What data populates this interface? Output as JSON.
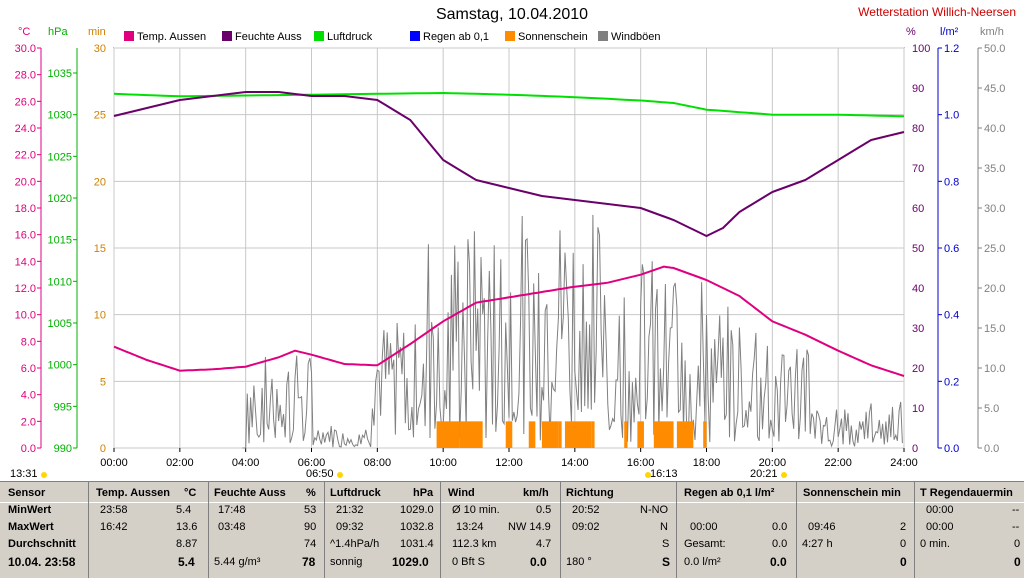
{
  "title": "Samstag, 10.04.2010",
  "station": "Wetterstation Willich-Neersen",
  "units": {
    "temp": "°C",
    "press": "hPa",
    "min": "min",
    "pct": "%",
    "rain": "l/m²",
    "wind": "km/h"
  },
  "legend": [
    {
      "label": "Temp. Aussen",
      "color": "#e0007f"
    },
    {
      "label": "Feuchte Auss",
      "color": "#6a006a"
    },
    {
      "label": "Luftdruck",
      "color": "#00e000"
    },
    {
      "label": "Regen ab 0,1",
      "color": "#0000ff"
    },
    {
      "label": "Sonnenschein",
      "color": "#ff8c00"
    },
    {
      "label": "Windböen",
      "color": "#808080"
    }
  ],
  "chart_data": {
    "type": "line",
    "title": "Samstag, 10.04.2010",
    "x_unit": "hours",
    "x_ticks": [
      "00:00",
      "02:00",
      "04:00",
      "06:00",
      "08:00",
      "10:00",
      "12:00",
      "14:00",
      "16:00",
      "18:00",
      "20:00",
      "22:00",
      "24:00"
    ],
    "axes": {
      "temp": {
        "range": [
          0,
          30
        ],
        "ticks": [
          "0.0",
          "2.0",
          "4.0",
          "6.0",
          "8.0",
          "10.0",
          "12.0",
          "14.0",
          "16.0",
          "18.0",
          "20.0",
          "22.0",
          "24.0",
          "26.0",
          "28.0",
          "30.0"
        ]
      },
      "press": {
        "range": [
          990,
          1038
        ],
        "ticks": [
          "990",
          "995",
          "1000",
          "1005",
          "1010",
          "1015",
          "1020",
          "1025",
          "1030",
          "1035"
        ]
      },
      "minutes": {
        "range": [
          0,
          30
        ],
        "ticks": [
          "0",
          "5",
          "10",
          "15",
          "20",
          "25",
          "30"
        ]
      },
      "humidity": {
        "range": [
          0,
          100
        ],
        "ticks": [
          "0",
          "10",
          "20",
          "30",
          "40",
          "50",
          "60",
          "70",
          "80",
          "90",
          "100"
        ]
      },
      "rain": {
        "range": [
          0,
          1.2
        ],
        "ticks": [
          "0.0",
          "0.2",
          "0.4",
          "0.6",
          "0.8",
          "1.0",
          "1.2"
        ]
      },
      "wind": {
        "range": [
          0,
          50
        ],
        "ticks": [
          "0.0",
          "5.0",
          "10.0",
          "15.0",
          "20.0",
          "25.0",
          "30.0",
          "35.0",
          "40.0",
          "45.0",
          "50.0"
        ]
      }
    },
    "series": [
      {
        "name": "Temp. Aussen",
        "axis": "temp",
        "x": [
          0,
          1,
          2,
          3,
          4,
          5,
          5.5,
          6,
          7,
          8,
          9,
          10,
          11,
          12,
          13,
          14,
          15,
          16,
          16.7,
          17,
          18,
          19,
          20,
          21,
          22,
          23,
          24
        ],
        "y": [
          7.6,
          6.6,
          5.8,
          5.9,
          6.1,
          6.8,
          7.3,
          7.0,
          6.3,
          6.2,
          7.8,
          9.5,
          10.9,
          11.3,
          11.7,
          12.1,
          12.4,
          13.0,
          13.6,
          13.5,
          12.6,
          11.4,
          9.5,
          8.5,
          7.3,
          6.2,
          5.4
        ]
      },
      {
        "name": "Feuchte Auss",
        "axis": "humidity",
        "x": [
          0,
          1,
          2,
          3,
          4,
          5,
          6,
          7,
          8,
          9,
          10,
          11,
          12,
          13,
          14,
          15,
          16,
          17,
          18,
          18.5,
          19,
          20,
          21,
          22,
          23,
          24
        ],
        "y": [
          83,
          85,
          87,
          88,
          89,
          89,
          88,
          88,
          87,
          82,
          72,
          67,
          65,
          63,
          62,
          61,
          60,
          57,
          53,
          55,
          59,
          64,
          67,
          72,
          77,
          79
        ]
      },
      {
        "name": "Luftdruck",
        "axis": "press",
        "x": [
          0,
          2,
          4,
          6,
          8,
          10,
          12,
          14,
          16,
          17,
          18,
          20,
          22,
          24
        ],
        "y": [
          1032.5,
          1032.2,
          1032.3,
          1032.4,
          1032.5,
          1032.6,
          1032.4,
          1032.1,
          1031.7,
          1031.4,
          1030.6,
          1030.0,
          1030.0,
          1029.8
        ]
      },
      {
        "name": "Sonnenschein",
        "axis": "minutes",
        "type": "bar",
        "intervals": [
          [
            9.8,
            10.5
          ],
          [
            10.5,
            11.2
          ],
          [
            11.9,
            12.1
          ],
          [
            12.6,
            12.8
          ],
          [
            13.0,
            13.5
          ],
          [
            13.5,
            13.6
          ],
          [
            13.7,
            14.5
          ],
          [
            14.5,
            14.6
          ],
          [
            15.5,
            15.6
          ],
          [
            15.9,
            16.1
          ],
          [
            16.4,
            17.0
          ],
          [
            17.1,
            17.6
          ],
          [
            17.9,
            18.0
          ]
        ],
        "value": 2
      },
      {
        "name": "Windböen",
        "axis": "wind",
        "type": "spikes"
      }
    ]
  },
  "time_markers": [
    {
      "label": "13:31"
    },
    {
      "label": "06:50"
    },
    {
      "label": "16:13"
    },
    {
      "label": "20:21"
    }
  ],
  "summary": {
    "headers": [
      "Sensor",
      "Temp. Aussen",
      "°C",
      "Feuchte Auss",
      "%",
      "Luftdruck",
      "hPa",
      "Wind",
      "km/h",
      "Richtung",
      "Regen ab 0,1  l/m²",
      "Sonnenschein min",
      "T Regendauermin"
    ],
    "row_labels": [
      "MinWert",
      "MaxWert",
      "Durchschnitt",
      "10.04.  23:58"
    ],
    "temp": {
      "min_time": "23:58",
      "min": "5.4",
      "max_time": "16:42",
      "max": "13.6",
      "avg": "8.87",
      "cur": "5.4"
    },
    "hum": {
      "min_time": "17:48",
      "min": "53",
      "max_time": "03:48",
      "max": "90",
      "avg": "74",
      "abs": "5.44 g/m³",
      "cur": "78"
    },
    "press": {
      "min_time": "21:32",
      "min": "1029.0",
      "max_time": "09:32",
      "max": "1032.8",
      "trend": "^1.4hPa/h",
      "avg": "1031.4",
      "text": "sonnig",
      "cur": "1029.0"
    },
    "wind": {
      "l1a": "Ø 10 min.",
      "l1b": "0.5",
      "l2a": "13:24",
      "l2b": "NW 14.9",
      "l3a": "112.3 km",
      "l3b": "4.7",
      "l4a": "0 Bft S",
      "l4b": "0.0"
    },
    "dir": {
      "l1a": "20:52",
      "l1b": "N-NO",
      "l2a": "09:02",
      "l2b": "N",
      "l3b": "S",
      "l4a": "180 °",
      "l4b": "S"
    },
    "rain": {
      "l2a": "00:00",
      "l2b": "0.0",
      "l3a": "Gesamt:",
      "l3b": "0.0",
      "l4a": "0.0 l/m²",
      "l4b": "0.0"
    },
    "sun": {
      "l2a": "09:46",
      "l2b": "2",
      "l3a": "4:27 h",
      "l3b": "0",
      "l4b": "0"
    },
    "tr": {
      "l1a": "00:00",
      "l1b": "--",
      "l2a": "00:00",
      "l2b": "--",
      "l3a": "0 min.",
      "l3b": "0",
      "l4b": "0"
    }
  }
}
